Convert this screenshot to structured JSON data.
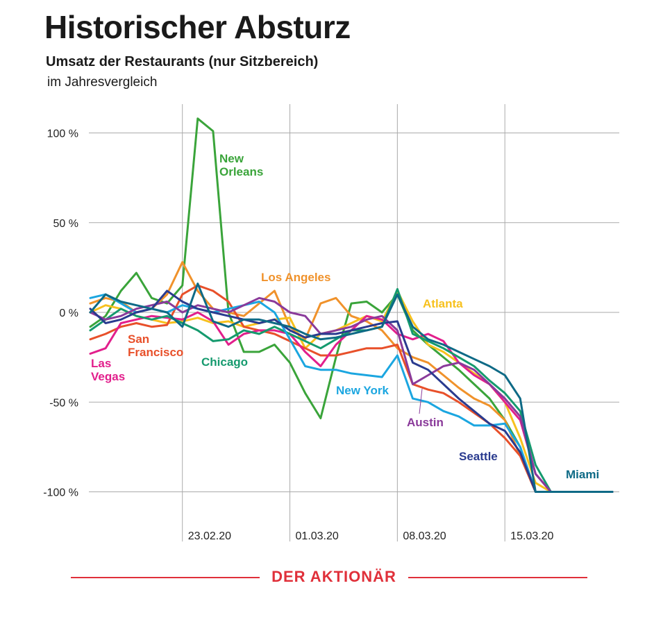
{
  "header": {
    "title": "Historischer Absturz",
    "subtitle": "Umsatz der Restaurants (nur Sitzbereich)",
    "subtitle2": "im Jahresvergleich"
  },
  "footer": {
    "logo": "DER AKTIONÄR"
  },
  "chart_data": {
    "type": "line",
    "title": "Historischer Absturz",
    "subtitle": "Umsatz der Restaurants (nur Sitzbereich)",
    "ylabel": "im Jahresvergleich",
    "ylim": [
      -100,
      115
    ],
    "y_ticks": [
      100,
      50,
      0,
      -50,
      -100
    ],
    "y_tick_labels": [
      "100 %",
      "50 %",
      "0 %",
      "-50 %",
      "-100 %"
    ],
    "x": [
      "17.02.20",
      "18.02.20",
      "19.02.20",
      "20.02.20",
      "21.02.20",
      "22.02.20",
      "23.02.20",
      "24.02.20",
      "25.02.20",
      "26.02.20",
      "27.02.20",
      "28.02.20",
      "29.02.20",
      "01.03.20",
      "02.03.20",
      "03.03.20",
      "04.03.20",
      "05.03.20",
      "06.03.20",
      "07.03.20",
      "08.03.20",
      "09.03.20",
      "10.03.20",
      "11.03.20",
      "12.03.20",
      "13.03.20",
      "14.03.20",
      "15.03.20",
      "16.03.20",
      "17.03.20",
      "18.03.20",
      "19.03.20",
      "20.03.20",
      "21.03.20",
      "22.03.20"
    ],
    "x_tick_labels": [
      "23.02.20",
      "01.03.20",
      "08.03.20",
      "15.03.20"
    ],
    "grid": true,
    "series": [
      {
        "name": "New Orleans",
        "color": "#3aa43a",
        "values": [
          -8,
          -2,
          12,
          22,
          8,
          5,
          15,
          108,
          101,
          0,
          -22,
          -22,
          -18,
          -28,
          -45,
          -59,
          -25,
          5,
          6,
          0,
          10,
          -10,
          -18,
          -25,
          -32,
          -40,
          -48,
          -60,
          -75,
          -100,
          -100,
          -100,
          -100,
          -100,
          -100
        ]
      },
      {
        "name": "Los Angeles",
        "color": "#f0922b",
        "values": [
          5,
          8,
          6,
          0,
          2,
          10,
          28,
          12,
          2,
          0,
          -2,
          5,
          12,
          -8,
          -15,
          5,
          8,
          -2,
          -5,
          -10,
          -20,
          -25,
          -28,
          -35,
          -42,
          -48,
          -52,
          -60,
          -80,
          -100,
          -100,
          -100,
          -100,
          -100,
          -100
        ]
      },
      {
        "name": "Atlanta",
        "color": "#f7c11e",
        "values": [
          0,
          4,
          2,
          -2,
          -4,
          -6,
          -5,
          -3,
          -6,
          -5,
          -8,
          -6,
          -4,
          -3,
          -20,
          -12,
          -10,
          -6,
          -2,
          -5,
          12,
          -5,
          -18,
          -22,
          -28,
          -34,
          -40,
          -50,
          -70,
          -95,
          -100,
          -100,
          -100,
          -100,
          -100
        ]
      },
      {
        "name": "San Francisco",
        "color": "#e8502a",
        "values": [
          -15,
          -12,
          -8,
          -6,
          -8,
          -7,
          10,
          15,
          12,
          6,
          -8,
          -10,
          -12,
          -16,
          -20,
          -24,
          -24,
          -22,
          -20,
          -20,
          -18,
          -40,
          -43,
          -45,
          -50,
          -56,
          -62,
          -70,
          -80,
          -100,
          -100,
          -100,
          -100,
          -100,
          -100
        ]
      },
      {
        "name": "Las Vegas",
        "color": "#e21f8c",
        "values": [
          -23,
          -20,
          -6,
          -4,
          -2,
          -3,
          -4,
          0,
          -5,
          -18,
          -12,
          -10,
          -10,
          -12,
          -22,
          -30,
          -18,
          -10,
          -2,
          -4,
          -12,
          -15,
          -12,
          -16,
          -28,
          -35,
          -40,
          -50,
          -60,
          -90,
          -100,
          -100,
          -100,
          -100,
          -100
        ]
      },
      {
        "name": "Chicago",
        "color": "#159a6e",
        "values": [
          -10,
          -4,
          2,
          -2,
          -4,
          -2,
          -6,
          -10,
          -16,
          -15,
          -10,
          -12,
          -8,
          -12,
          -16,
          -20,
          -15,
          -10,
          -10,
          -8,
          13,
          -12,
          -16,
          -20,
          -25,
          -30,
          -38,
          -45,
          -55,
          -85,
          -100,
          -100,
          -100,
          -100,
          -100
        ]
      },
      {
        "name": "New York",
        "color": "#1ba6e0",
        "values": [
          8,
          10,
          5,
          0,
          2,
          0,
          4,
          2,
          0,
          2,
          4,
          6,
          0,
          -15,
          -30,
          -32,
          -32,
          -34,
          -35,
          -36,
          -24,
          -48,
          -50,
          -55,
          -58,
          -63,
          -63,
          -62,
          -75,
          -100,
          -100,
          -100,
          -100,
          -100,
          -100
        ]
      },
      {
        "name": "Austin",
        "color": "#8a3a9a",
        "values": [
          0,
          -4,
          -2,
          2,
          4,
          6,
          0,
          4,
          2,
          0,
          4,
          8,
          6,
          0,
          -2,
          -12,
          -10,
          -8,
          -4,
          -2,
          -10,
          -40,
          -35,
          -30,
          -28,
          -32,
          -40,
          -48,
          -58,
          -90,
          -100,
          -100,
          -100,
          -100,
          -100
        ]
      },
      {
        "name": "Seattle",
        "color": "#2a3b8f",
        "values": [
          2,
          -6,
          -4,
          0,
          2,
          12,
          6,
          2,
          0,
          -2,
          -4,
          -6,
          -4,
          -10,
          -14,
          -12,
          -12,
          -10,
          -8,
          -6,
          -5,
          -28,
          -32,
          -40,
          -48,
          -55,
          -62,
          -66,
          -78,
          -100,
          -100,
          -100,
          -100,
          -100,
          -100
        ]
      },
      {
        "name": "Miami",
        "color": "#0e6a86",
        "values": [
          0,
          10,
          6,
          4,
          2,
          0,
          -8,
          16,
          -5,
          -8,
          -4,
          -4,
          -6,
          -8,
          -12,
          -15,
          -14,
          -12,
          -10,
          -8,
          10,
          -8,
          -15,
          -18,
          -22,
          -26,
          -30,
          -35,
          -48,
          -100,
          -100,
          -100,
          -100,
          -100,
          -100
        ]
      }
    ],
    "annotations": [
      {
        "text": "New Orleans",
        "series": "New Orleans"
      },
      {
        "text": "Los Angeles",
        "series": "Los Angeles"
      },
      {
        "text": "Atlanta",
        "series": "Atlanta"
      },
      {
        "text": "San Francisco",
        "series": "San Francisco"
      },
      {
        "text": "Las Vegas",
        "series": "Las Vegas"
      },
      {
        "text": "Chicago",
        "series": "Chicago"
      },
      {
        "text": "New York",
        "series": "New York"
      },
      {
        "text": "Austin",
        "series": "Austin"
      },
      {
        "text": "Seattle",
        "series": "Seattle"
      },
      {
        "text": "Miami",
        "series": "Miami"
      }
    ]
  }
}
